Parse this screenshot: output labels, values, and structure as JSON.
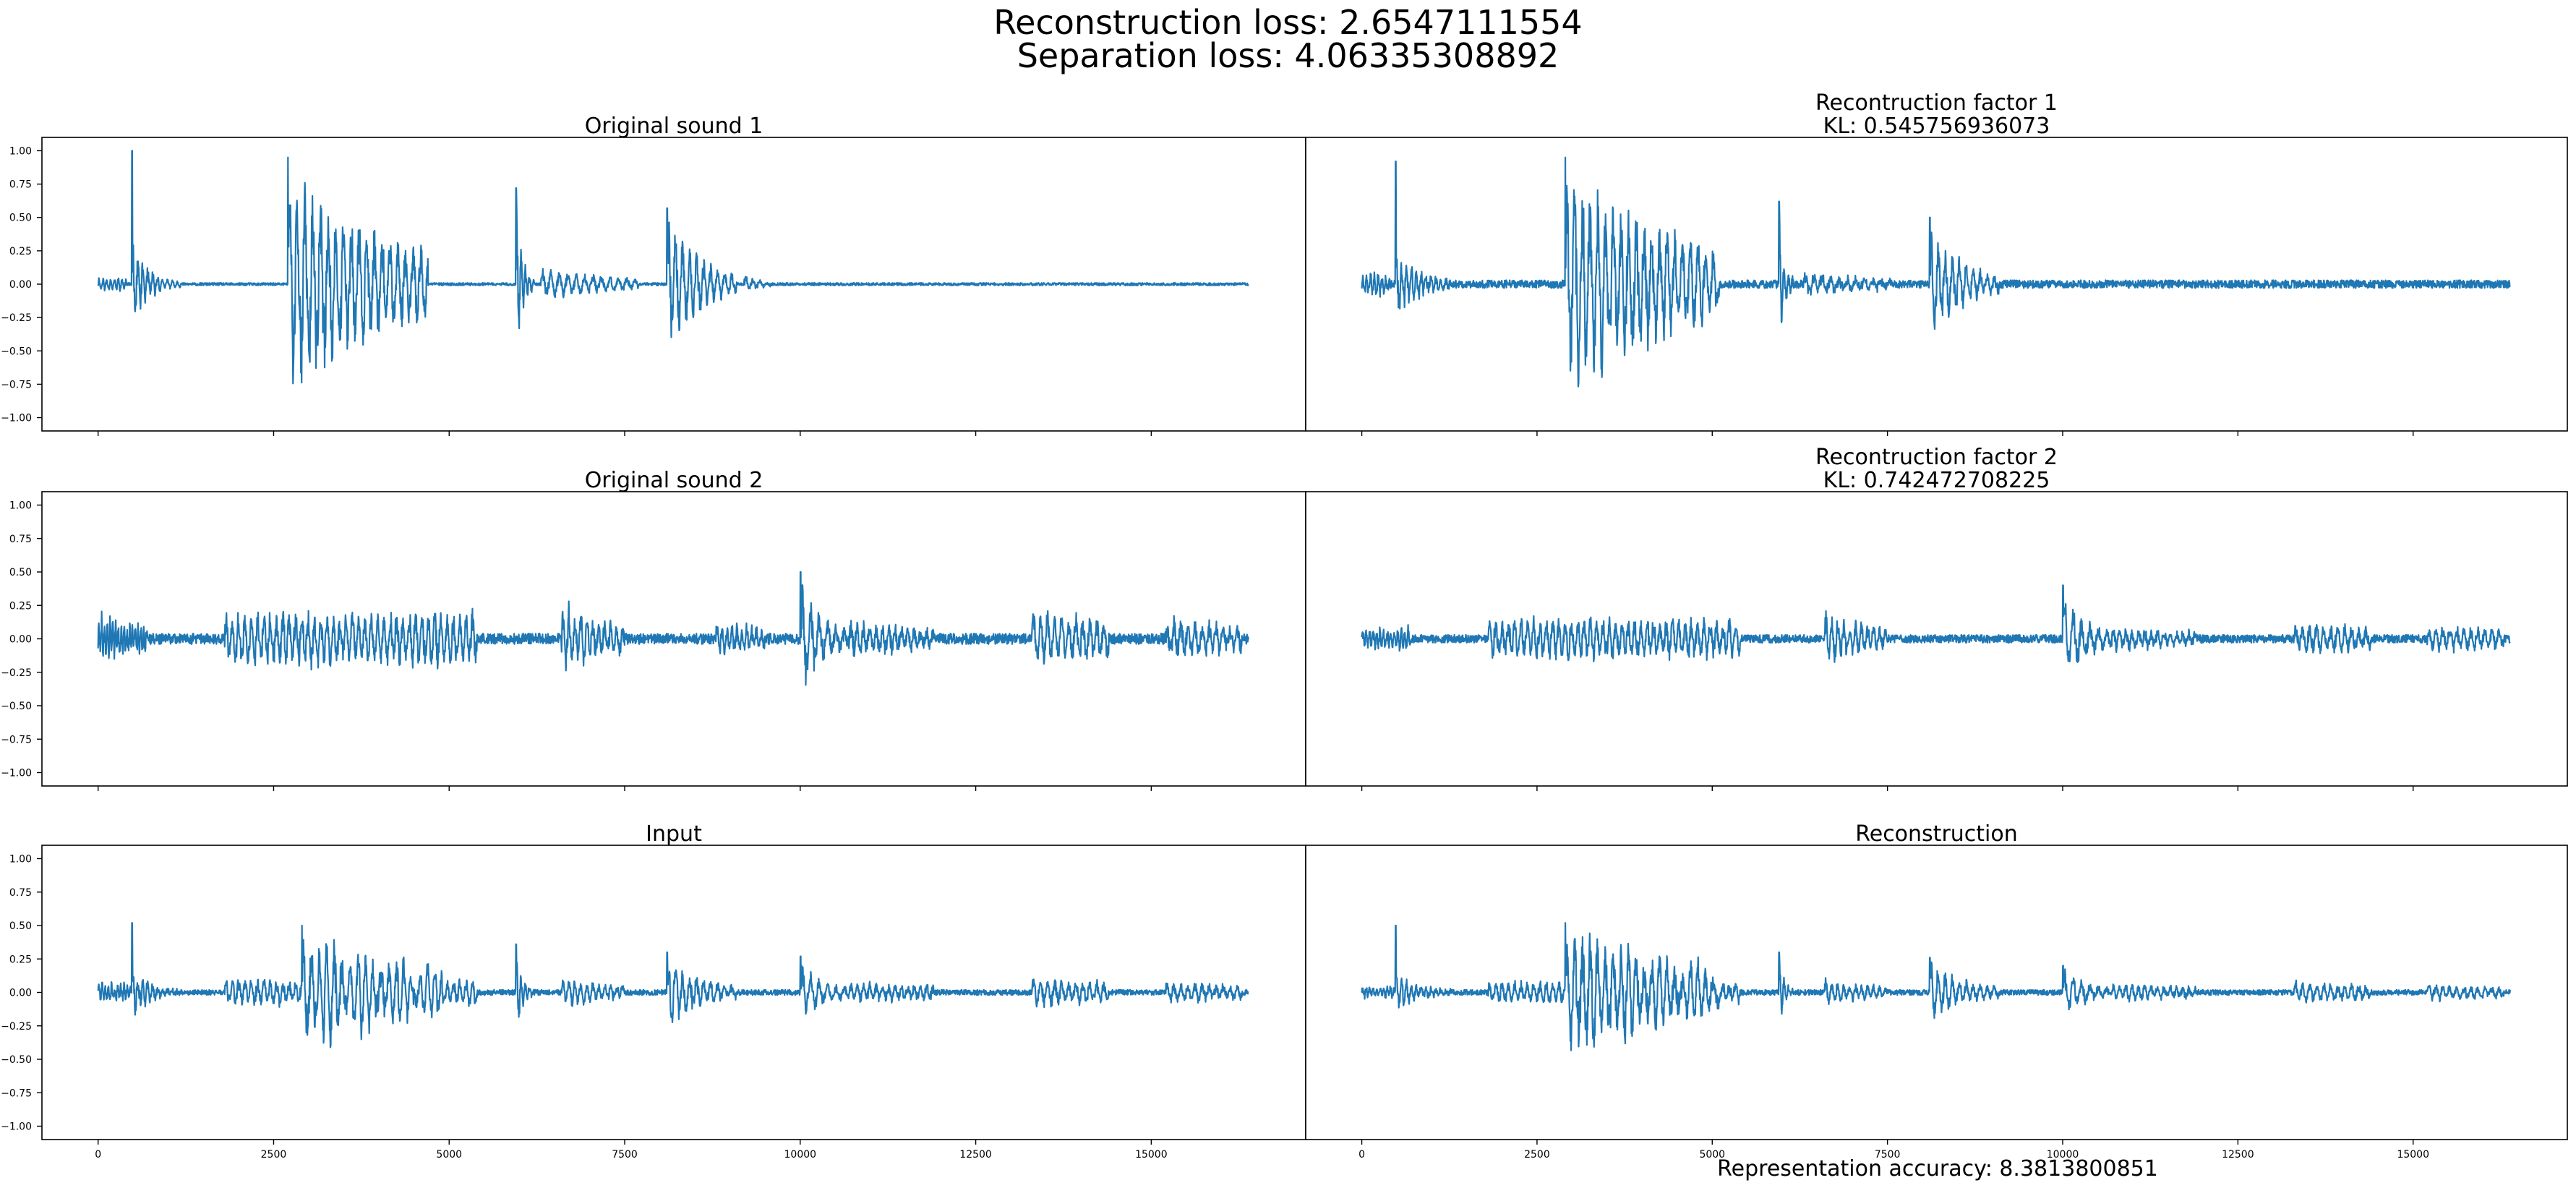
{
  "figure": {
    "suptitle_line1": "Reconstruction loss: 2.6547111554",
    "suptitle_line2": "Separation loss: 4.06335308892",
    "footer": "Representation accuracy: 8.3813800851",
    "line_color": "#1f77b4"
  },
  "chart_data": [
    {
      "type": "line",
      "title": "Original sound 1",
      "xlabel": "",
      "ylabel": "",
      "xlim": [
        -800,
        17200
      ],
      "ylim": [
        -1.1,
        1.1
      ],
      "xticks": [
        0,
        2500,
        5000,
        7500,
        10000,
        12500,
        15000
      ],
      "yticks": [
        -1.0,
        -0.75,
        -0.5,
        -0.25,
        0.0,
        0.25,
        0.5,
        0.75,
        1.0
      ],
      "ytick_labels": [
        "−1.00",
        "−0.75",
        "−0.50",
        "−0.25",
        "0.00",
        "0.25",
        "0.50",
        "0.75",
        "1.00"
      ],
      "show_yticklabels": true,
      "show_xticklabels": false,
      "x_range": [
        0,
        16384
      ],
      "baseline": 0.0,
      "events": [
        {
          "x": 0,
          "len": 400,
          "amp": 0.05,
          "period": 55,
          "decay": 0
        },
        {
          "x": 480,
          "len": 700,
          "amp": 0.35,
          "period": 70,
          "decay": 3,
          "peak": 1.0
        },
        {
          "x": 2700,
          "len": 2000,
          "amp": 0.9,
          "period": 110,
          "decay": 1.2,
          "peak": 0.95
        },
        {
          "x": 5950,
          "len": 260,
          "amp": 0.7,
          "period": 60,
          "decay": 3,
          "peak": 0.72
        },
        {
          "x": 6300,
          "len": 1400,
          "amp": 0.12,
          "period": 120,
          "decay": 1
        },
        {
          "x": 8100,
          "len": 1000,
          "amp": 0.55,
          "period": 100,
          "decay": 2,
          "peak": 0.57
        },
        {
          "x": 9200,
          "len": 400,
          "amp": 0.08,
          "period": 100,
          "decay": 2
        }
      ],
      "noise": 0.01,
      "seed": 11
    },
    {
      "type": "line",
      "title": "Recontruction factor 1",
      "subtitle": "KL: 0.545756936073",
      "xlabel": "",
      "ylabel": "",
      "xlim": [
        -800,
        17200
      ],
      "ylim": [
        -1.1,
        1.1
      ],
      "xticks": [
        0,
        2500,
        5000,
        7500,
        10000,
        12500,
        15000
      ],
      "show_yticklabels": false,
      "show_xticklabels": false,
      "x_range": [
        0,
        16384
      ],
      "baseline": 0.0,
      "events": [
        {
          "x": 0,
          "len": 400,
          "amp": 0.08,
          "period": 55,
          "decay": 0
        },
        {
          "x": 480,
          "len": 800,
          "amp": 0.3,
          "period": 70,
          "decay": 2.5,
          "peak": 0.92
        },
        {
          "x": 2900,
          "len": 2200,
          "amp": 0.9,
          "period": 110,
          "decay": 1.1,
          "peak": 0.95
        },
        {
          "x": 5950,
          "len": 220,
          "amp": 0.6,
          "period": 60,
          "decay": 3,
          "peak": 0.62
        },
        {
          "x": 6300,
          "len": 1300,
          "amp": 0.08,
          "period": 120,
          "decay": 1
        },
        {
          "x": 8100,
          "len": 1000,
          "amp": 0.45,
          "period": 100,
          "decay": 2,
          "peak": 0.5
        }
      ],
      "noise": 0.03,
      "seed": 21
    },
    {
      "type": "line",
      "title": "Original sound 2",
      "xlabel": "",
      "ylabel": "",
      "xlim": [
        -800,
        17200
      ],
      "ylim": [
        -1.1,
        1.1
      ],
      "xticks": [
        0,
        2500,
        5000,
        7500,
        10000,
        12500,
        15000
      ],
      "yticks": [
        -1.0,
        -0.75,
        -0.5,
        -0.25,
        0.0,
        0.25,
        0.5,
        0.75,
        1.0
      ],
      "ytick_labels": [
        "−1.00",
        "−0.75",
        "−0.50",
        "−0.25",
        "0.00",
        "0.25",
        "0.50",
        "0.75",
        "1.00"
      ],
      "show_yticklabels": true,
      "show_xticklabels": false,
      "x_range": [
        0,
        16384
      ],
      "baseline": 0.0,
      "events": [
        {
          "x": 0,
          "len": 700,
          "amp": 0.18,
          "period": 40,
          "decay": 0.6
        },
        {
          "x": 1800,
          "len": 3600,
          "amp": 0.2,
          "period": 90,
          "decay": 0
        },
        {
          "x": 6600,
          "len": 900,
          "amp": 0.28,
          "period": 85,
          "decay": 1
        },
        {
          "x": 8800,
          "len": 700,
          "amp": 0.12,
          "period": 70,
          "decay": 0.5
        },
        {
          "x": 10000,
          "len": 700,
          "amp": 0.45,
          "period": 120,
          "decay": 2,
          "peak": 0.5
        },
        {
          "x": 10700,
          "len": 1200,
          "amp": 0.12,
          "period": 90,
          "decay": 0.5
        },
        {
          "x": 13300,
          "len": 1100,
          "amp": 0.22,
          "period": 100,
          "decay": 0.5
        },
        {
          "x": 15200,
          "len": 1100,
          "amp": 0.15,
          "period": 100,
          "decay": 0.5
        }
      ],
      "noise": 0.04,
      "seed": 31
    },
    {
      "type": "line",
      "title": "Recontruction factor 2",
      "subtitle": "KL: 0.742472708225",
      "xlabel": "",
      "ylabel": "",
      "xlim": [
        -800,
        17200
      ],
      "ylim": [
        -1.1,
        1.1
      ],
      "xticks": [
        0,
        2500,
        5000,
        7500,
        10000,
        12500,
        15000
      ],
      "show_yticklabels": false,
      "show_xticklabels": false,
      "x_range": [
        0,
        16384
      ],
      "baseline": 0.0,
      "events": [
        {
          "x": 0,
          "len": 700,
          "amp": 0.08,
          "period": 50,
          "decay": 0
        },
        {
          "x": 1800,
          "len": 3600,
          "amp": 0.15,
          "period": 90,
          "decay": 0
        },
        {
          "x": 6600,
          "len": 900,
          "amp": 0.2,
          "period": 85,
          "decay": 1
        },
        {
          "x": 10000,
          "len": 700,
          "amp": 0.38,
          "period": 120,
          "decay": 2,
          "peak": 0.4
        },
        {
          "x": 10700,
          "len": 1200,
          "amp": 0.08,
          "period": 90,
          "decay": 0.5
        },
        {
          "x": 13300,
          "len": 1100,
          "amp": 0.12,
          "period": 100,
          "decay": 0.5
        },
        {
          "x": 15200,
          "len": 1100,
          "amp": 0.1,
          "period": 100,
          "decay": 0.5
        }
      ],
      "noise": 0.03,
      "seed": 41
    },
    {
      "type": "line",
      "title": "Input",
      "xlabel": "",
      "ylabel": "",
      "xlim": [
        -800,
        17200
      ],
      "ylim": [
        -1.1,
        1.1
      ],
      "xticks": [
        0,
        2500,
        5000,
        7500,
        10000,
        12500,
        15000
      ],
      "xtick_labels": [
        "0",
        "2500",
        "5000",
        "7500",
        "10000",
        "12500",
        "15000"
      ],
      "yticks": [
        -1.0,
        -0.75,
        -0.5,
        -0.25,
        0.0,
        0.25,
        0.5,
        0.75,
        1.0
      ],
      "ytick_labels": [
        "−1.00",
        "−0.75",
        "−0.50",
        "−0.25",
        "0.00",
        "0.25",
        "0.50",
        "0.75",
        "1.00"
      ],
      "show_yticklabels": true,
      "show_xticklabels": true,
      "x_range": [
        0,
        16384
      ],
      "baseline": 0.0,
      "events": [
        {
          "x": 0,
          "len": 700,
          "amp": 0.08,
          "period": 45,
          "decay": 0.5
        },
        {
          "x": 480,
          "len": 700,
          "amp": 0.2,
          "period": 70,
          "decay": 3,
          "peak": 0.52
        },
        {
          "x": 1800,
          "len": 3600,
          "amp": 0.1,
          "period": 90,
          "decay": 0
        },
        {
          "x": 2900,
          "len": 2000,
          "amp": 0.45,
          "period": 110,
          "decay": 1.2,
          "peak": 0.5
        },
        {
          "x": 5950,
          "len": 260,
          "amp": 0.35,
          "period": 60,
          "decay": 3,
          "peak": 0.36
        },
        {
          "x": 6600,
          "len": 900,
          "amp": 0.12,
          "period": 85,
          "decay": 1
        },
        {
          "x": 8100,
          "len": 1000,
          "amp": 0.3,
          "period": 100,
          "decay": 2,
          "peak": 0.3
        },
        {
          "x": 10000,
          "len": 700,
          "amp": 0.25,
          "period": 120,
          "decay": 2,
          "peak": 0.27
        },
        {
          "x": 10700,
          "len": 1200,
          "amp": 0.08,
          "period": 90,
          "decay": 0.5
        },
        {
          "x": 13300,
          "len": 1100,
          "amp": 0.12,
          "period": 100,
          "decay": 0.5
        },
        {
          "x": 15200,
          "len": 1100,
          "amp": 0.08,
          "period": 100,
          "decay": 0.5
        }
      ],
      "noise": 0.02,
      "seed": 51
    },
    {
      "type": "line",
      "title": "Reconstruction",
      "xlabel": "",
      "ylabel": "",
      "xlim": [
        -800,
        17200
      ],
      "ylim": [
        -1.1,
        1.1
      ],
      "xticks": [
        0,
        2500,
        5000,
        7500,
        10000,
        12500,
        15000
      ],
      "xtick_labels": [
        "0",
        "2500",
        "5000",
        "7500",
        "10000",
        "12500",
        "15000"
      ],
      "show_yticklabels": false,
      "show_xticklabels": true,
      "x_range": [
        0,
        16384
      ],
      "baseline": 0.0,
      "events": [
        {
          "x": 0,
          "len": 500,
          "amp": 0.04,
          "period": 50,
          "decay": 0
        },
        {
          "x": 480,
          "len": 800,
          "amp": 0.15,
          "period": 70,
          "decay": 2.5,
          "peak": 0.5
        },
        {
          "x": 1800,
          "len": 3600,
          "amp": 0.08,
          "period": 90,
          "decay": 0
        },
        {
          "x": 2900,
          "len": 2200,
          "amp": 0.5,
          "period": 110,
          "decay": 1.1,
          "peak": 0.52
        },
        {
          "x": 5950,
          "len": 220,
          "amp": 0.3,
          "period": 60,
          "decay": 3,
          "peak": 0.3
        },
        {
          "x": 6600,
          "len": 900,
          "amp": 0.1,
          "period": 85,
          "decay": 1
        },
        {
          "x": 8100,
          "len": 1000,
          "amp": 0.25,
          "period": 100,
          "decay": 2,
          "peak": 0.26
        },
        {
          "x": 10000,
          "len": 700,
          "amp": 0.2,
          "period": 120,
          "decay": 2,
          "peak": 0.2
        },
        {
          "x": 10700,
          "len": 1200,
          "amp": 0.06,
          "period": 90,
          "decay": 0.5
        },
        {
          "x": 13300,
          "len": 1100,
          "amp": 0.08,
          "period": 100,
          "decay": 0.5
        },
        {
          "x": 15200,
          "len": 1100,
          "amp": 0.06,
          "period": 100,
          "decay": 0.5
        }
      ],
      "noise": 0.02,
      "seed": 61
    }
  ]
}
